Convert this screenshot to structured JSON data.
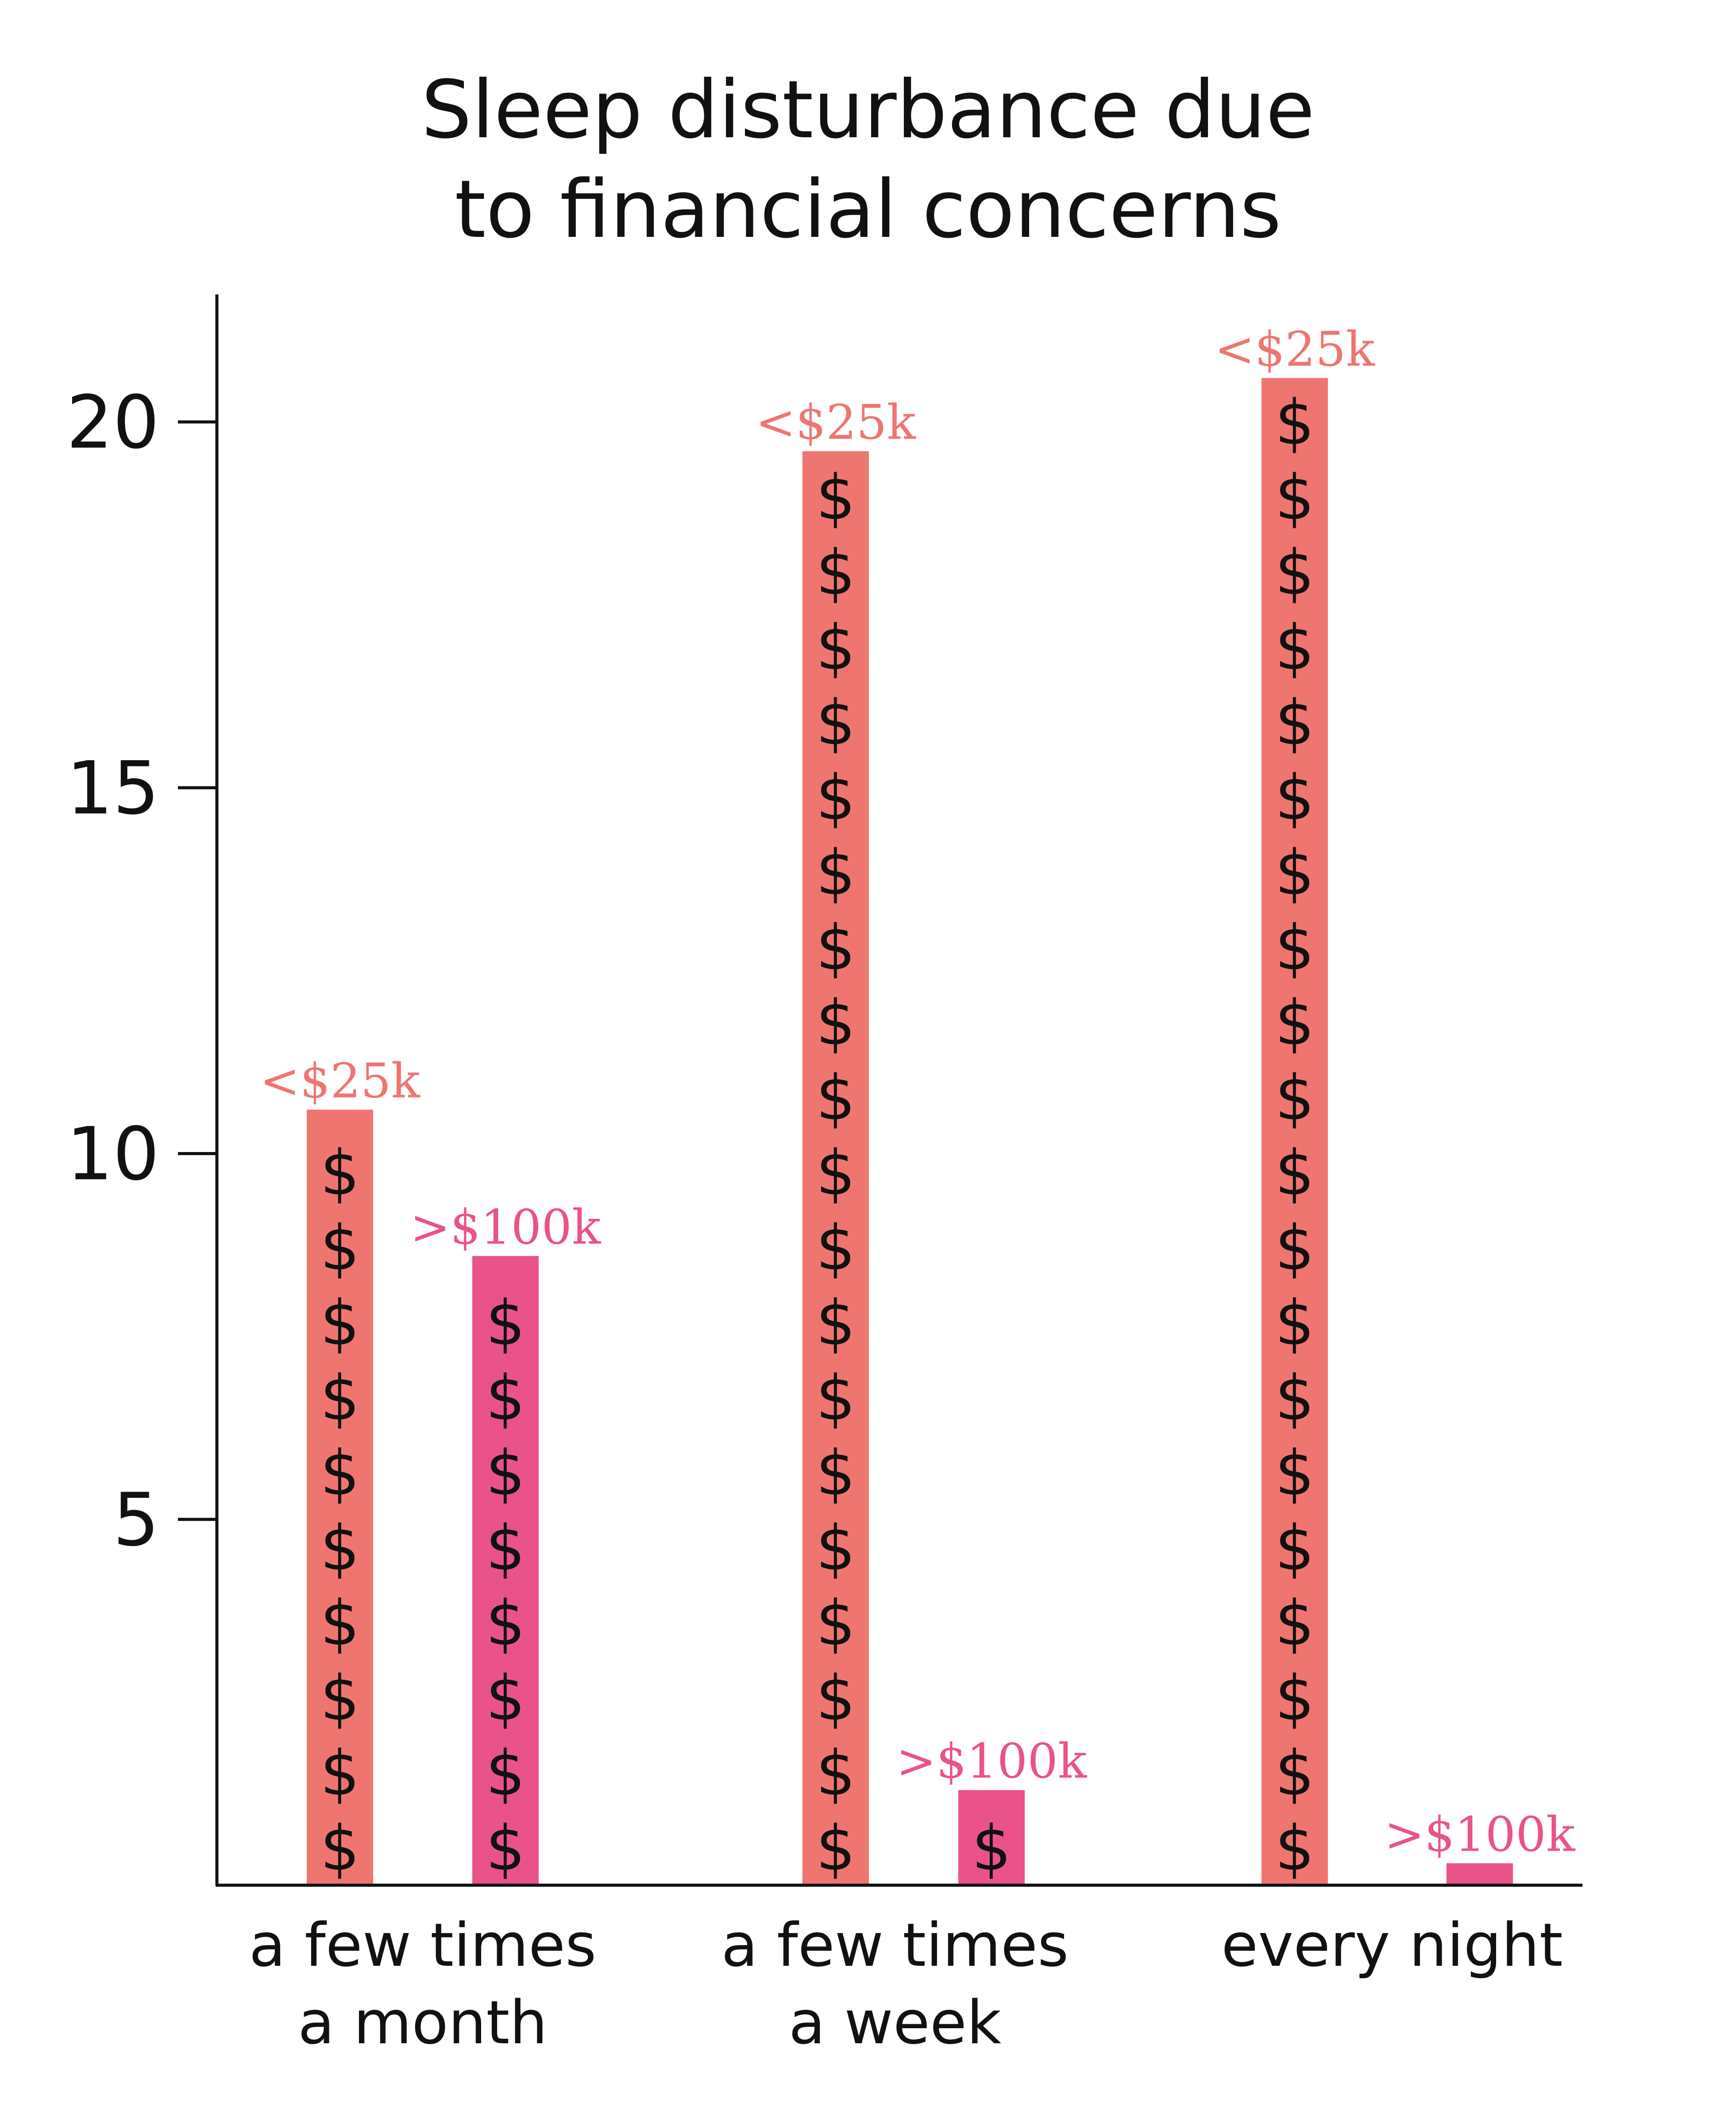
{
  "chart_data": {
    "type": "bar",
    "title_lines": [
      "Sleep disturbance due",
      "to financial concerns"
    ],
    "categories": [
      [
        "a few times",
        "a month"
      ],
      [
        "a few times",
        "a week"
      ],
      [
        "every night"
      ]
    ],
    "series": [
      {
        "label": "<$25k",
        "color": "#ef7570",
        "values": [
          10.6,
          19.6,
          20.6
        ]
      },
      {
        "label": ">$100k",
        "color": "#e9538a",
        "values": [
          8.6,
          1.3,
          0.3
        ]
      }
    ],
    "yticks": [
      5,
      10,
      15,
      20
    ],
    "ylim": [
      0,
      21.8
    ],
    "bar_glyph": "$",
    "grid": false,
    "legend": "none"
  }
}
